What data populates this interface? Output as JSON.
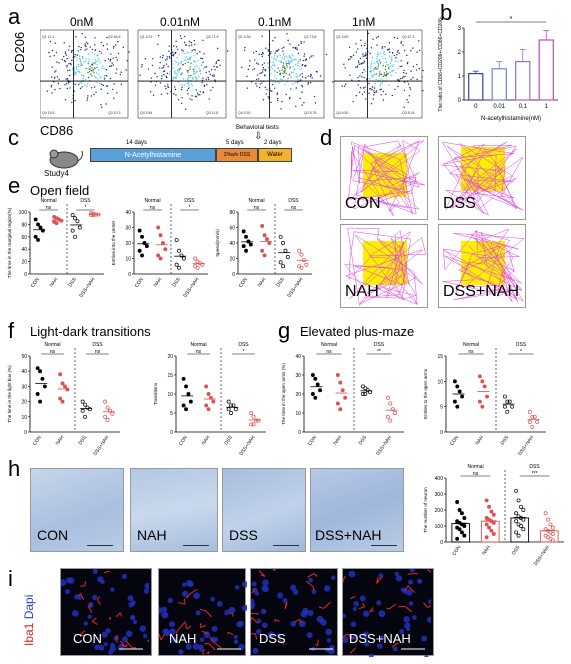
{
  "panels": {
    "a": {
      "letter": "a",
      "ylabel": "CD206",
      "xlabel": "CD86",
      "titles": [
        "0nM",
        "0.01nM",
        "0.1nM",
        "1nM"
      ],
      "quadrants": [
        [
          "Q1 11.1",
          "Q2 66.5",
          "Q4 15.5",
          "Q3 10.3"
        ],
        [
          "Q1 10.5",
          "Q2 71.9",
          "Q4 5.84",
          "Q3 11.8"
        ],
        [
          "Q1 6.35",
          "Q2 73.6",
          "Q4 9.30",
          "Q3 8.76"
        ],
        [
          "Q1 4.80",
          "Q2 67.3",
          "Q4 6.50",
          "Q3 8.24"
        ]
      ]
    },
    "b": {
      "letter": "b"
    },
    "c": {
      "letter": "c",
      "behavioral": "Behavioral tests",
      "mouse_label": "Study4",
      "d14": "14 days",
      "d5": "5 days",
      "d2": "2 days",
      "seg_nah": "N-Acetylhistamine",
      "seg_dss": "3%w/v DSS",
      "seg_water": "Water"
    },
    "d": {
      "letter": "d",
      "labels": [
        "CON",
        "DSS",
        "NAH",
        "DSS+NAH"
      ]
    },
    "e": {
      "letter": "e",
      "title": "Open field"
    },
    "f": {
      "letter": "f",
      "title": "Light-dark transitions"
    },
    "g": {
      "letter": "g",
      "title": "Elevated plus-maze"
    },
    "h": {
      "letter": "h",
      "labels": [
        "CON",
        "NAH",
        "DSS",
        "DSS+NAH"
      ]
    },
    "i": {
      "letter": "i",
      "stain_iba": "Iba1",
      "stain_dapi": "Dapi",
      "labels": [
        "CON",
        "NAH",
        "DSS",
        "DSS+NAH"
      ]
    }
  },
  "chart_data": [
    {
      "id": "b",
      "type": "bar",
      "categories": [
        "0",
        "0.01",
        "0.1",
        "1"
      ],
      "values": [
        1.1,
        1.3,
        1.6,
        2.5
      ],
      "errors": [
        0.1,
        0.3,
        0.5,
        0.4
      ],
      "colors": [
        "#2b4aa0",
        "#6a86d8",
        "#9b6cd0",
        "#c048c8"
      ],
      "xlabel": "N-acetylhistamine(nM)",
      "ylabel": "The ratio of CD86+CD206+/CD86+CD206-",
      "yticks": [
        0,
        1,
        2,
        3
      ],
      "ylim": [
        0,
        3
      ],
      "sig": "*"
    },
    {
      "id": "e1",
      "type": "scatter",
      "ylabel": "The time in the marginal region(%)",
      "yticks": [
        0,
        20,
        40,
        60,
        80,
        100
      ],
      "ylim": [
        0,
        100
      ],
      "categories": [
        "CON",
        "NAH",
        "DSS",
        "DSS+NAH"
      ],
      "groups": [
        [
          88,
          80,
          75,
          70,
          60,
          55
        ],
        [
          92,
          90,
          88,
          86,
          84,
          82
        ],
        [
          95,
          90,
          85,
          75,
          70,
          60
        ],
        [
          98,
          97,
          96,
          96,
          95,
          95
        ]
      ],
      "ns": "ns",
      "sig": "*"
    },
    {
      "id": "e2",
      "type": "scatter",
      "ylabel": "Entries into the center",
      "yticks": [
        0,
        10,
        20,
        30,
        40
      ],
      "ylim": [
        0,
        40
      ],
      "categories": [
        "CON",
        "NAH",
        "DSS",
        "DSS+NAH"
      ],
      "groups": [
        [
          28,
          24,
          20,
          18,
          15,
          12
        ],
        [
          30,
          25,
          20,
          16,
          12,
          10
        ],
        [
          22,
          15,
          12,
          10,
          6,
          4
        ],
        [
          10,
          8,
          7,
          6,
          5,
          4
        ]
      ],
      "ns": "ns",
      "sig": "*"
    },
    {
      "id": "e3",
      "type": "scatter",
      "ylabel": "Speed(mm/s)",
      "yticks": [
        0,
        20,
        40,
        60,
        80
      ],
      "ylim": [
        0,
        80
      ],
      "categories": [
        "CON",
        "NAH",
        "DSS",
        "DSS+NAH"
      ],
      "groups": [
        [
          55,
          48,
          42,
          38,
          36,
          30
        ],
        [
          62,
          50,
          45,
          40,
          30,
          24
        ],
        [
          48,
          40,
          30,
          22,
          15,
          10
        ],
        [
          30,
          25,
          18,
          12,
          10,
          8
        ]
      ],
      "ns": "ns",
      "sig": "ns"
    },
    {
      "id": "f1",
      "type": "scatter",
      "ylabel": "The time in the light box (%)",
      "yticks": [
        0,
        10,
        20,
        30,
        40,
        50
      ],
      "ylim": [
        0,
        50
      ],
      "categories": [
        "CON",
        "NAH",
        "DSS",
        "DSS+NAH"
      ],
      "groups": [
        [
          42,
          40,
          35,
          30,
          25,
          20
        ],
        [
          38,
          32,
          30,
          28,
          22,
          20
        ],
        [
          20,
          18,
          16,
          15,
          14,
          10
        ],
        [
          20,
          16,
          14,
          12,
          10,
          8
        ]
      ],
      "ns": "ns",
      "sig": "ns"
    },
    {
      "id": "f2",
      "type": "scatter",
      "ylabel": "Transitions",
      "yticks": [
        0,
        5,
        10,
        15,
        20
      ],
      "ylim": [
        0,
        20
      ],
      "categories": [
        "CON",
        "NAH",
        "DSS",
        "DSS+NAH"
      ],
      "groups": [
        [
          14,
          12,
          10,
          8,
          7,
          6
        ],
        [
          12,
          10,
          9,
          8,
          7,
          6
        ],
        [
          8,
          7,
          7,
          6,
          6,
          5
        ],
        [
          5,
          4,
          3,
          3,
          2,
          2
        ]
      ],
      "ns": "ns",
      "sig": "*"
    },
    {
      "id": "g1",
      "type": "scatter",
      "ylabel": "The time in the open arms (%)",
      "yticks": [
        0,
        10,
        20,
        30,
        40
      ],
      "ylim": [
        0,
        40
      ],
      "categories": [
        "CON",
        "NAH",
        "DSS",
        "DSS+NAH"
      ],
      "groups": [
        [
          30,
          28,
          25,
          22,
          20,
          18
        ],
        [
          30,
          26,
          22,
          18,
          15,
          12
        ],
        [
          24,
          23,
          22,
          21,
          20,
          20
        ],
        [
          18,
          15,
          12,
          10,
          8,
          6
        ]
      ],
      "ns": "ns",
      "sig": "**"
    },
    {
      "id": "g2",
      "type": "scatter",
      "ylabel": "Entries to the open arms",
      "yticks": [
        0,
        5,
        10,
        15
      ],
      "ylim": [
        0,
        15
      ],
      "categories": [
        "CON",
        "NAH",
        "DSS",
        "DSS+NAH"
      ],
      "groups": [
        [
          10,
          9,
          8,
          7,
          6,
          5
        ],
        [
          11,
          10,
          9,
          7,
          6,
          5
        ],
        [
          7,
          6,
          6,
          5,
          5,
          4
        ],
        [
          4,
          3,
          3,
          2,
          2,
          1
        ]
      ],
      "ns": "ns",
      "sig": "*"
    },
    {
      "id": "h",
      "type": "bar-scatter",
      "ylabel": "The number of neuron",
      "yticks": [
        0,
        100,
        200,
        300,
        400
      ],
      "ylim": [
        0,
        400
      ],
      "categories": [
        "CON",
        "NAH",
        "DSS",
        "DSS+NAH"
      ],
      "values": [
        115,
        130,
        150,
        70
      ],
      "groups": [
        [
          250,
          200,
          180,
          150,
          130,
          120,
          110,
          100,
          90,
          80,
          60,
          40,
          20
        ],
        [
          260,
          220,
          190,
          170,
          150,
          140,
          130,
          120,
          110,
          90,
          70,
          50,
          30
        ],
        [
          320,
          260,
          220,
          200,
          180,
          160,
          150,
          140,
          130,
          110,
          100,
          80,
          60,
          40
        ],
        [
          180,
          140,
          110,
          90,
          80,
          70,
          60,
          50,
          40,
          30,
          20,
          10
        ]
      ],
      "ns": "ns",
      "sig": "***"
    }
  ],
  "group_labels": {
    "normal": "Normal",
    "dss": "DSS"
  }
}
